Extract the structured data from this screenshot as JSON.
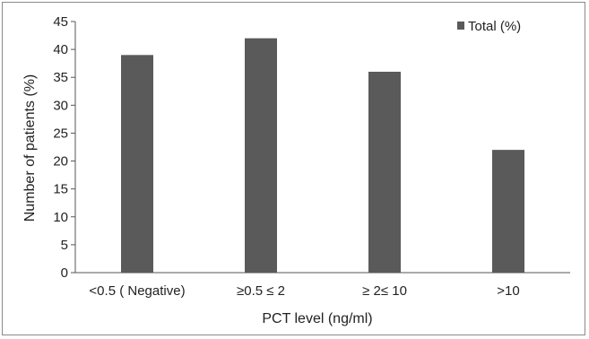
{
  "chart_data": {
    "type": "bar",
    "categories": [
      "<0.5 ( Negative)",
      "≥0.5 ≤ 2",
      "≥ 2≤ 10",
      ">10"
    ],
    "series": [
      {
        "name": "Total (%)",
        "values": [
          39,
          42,
          36,
          22
        ],
        "color": "#5a5a5a"
      }
    ],
    "xlabel": "PCT level (ng/ml)",
    "ylabel": "Number  of patients (%)",
    "ylim": [
      0,
      45
    ],
    "yticks": [
      "0",
      "5",
      "10",
      "15",
      "20",
      "25",
      "30",
      "35",
      "40",
      "45"
    ],
    "grid": false,
    "legend_position": "top-right"
  }
}
